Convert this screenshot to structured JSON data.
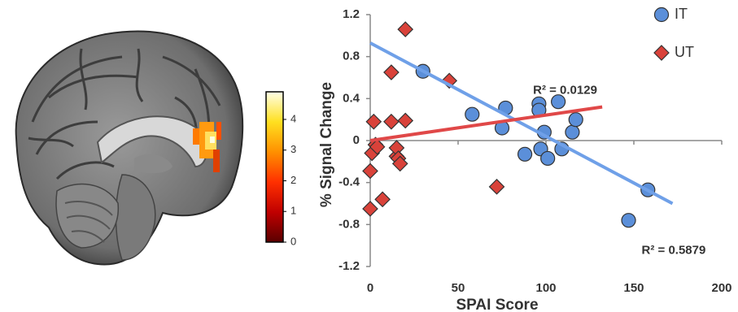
{
  "chart_data": [
    {
      "type": "colorbar",
      "ylim": [
        0,
        4.9
      ],
      "yticks": [
        0,
        1,
        2,
        3,
        4
      ],
      "colors": [
        "#5a0000",
        "#c00000",
        "#ff3000",
        "#ff9000",
        "#ffe020",
        "#ffffe8"
      ]
    },
    {
      "type": "scatter",
      "xlabel": "SPAI Score",
      "ylabel": "% Signal Change",
      "xlim": [
        0,
        200
      ],
      "xticks": [
        0,
        50,
        100,
        150,
        200
      ],
      "ylim": [
        -1.2,
        1.2
      ],
      "yticks": [
        -1.2,
        -0.8,
        -0.4,
        0,
        0.4,
        0.8,
        1.2
      ],
      "series": [
        {
          "name": "IT",
          "color": "#5b8fd9",
          "marker": "circle",
          "line_color": "#6fa0e8",
          "x": [
            30,
            58,
            77,
            75,
            88,
            96,
            96,
            99,
            97,
            101,
            107,
            109,
            115,
            117,
            147,
            158
          ],
          "values": [
            0.66,
            0.25,
            0.31,
            0.12,
            -0.13,
            0.35,
            0.29,
            0.08,
            -0.08,
            -0.17,
            0.37,
            -0.08,
            0.08,
            0.2,
            -0.76,
            -0.47
          ],
          "fit_x": [
            0,
            172
          ],
          "fit_y": [
            0.93,
            -0.6
          ],
          "fit_label": "R² = 0.5879"
        },
        {
          "name": "UT",
          "color": "#d9423a",
          "marker": "diamond",
          "line_color": "#e04848",
          "x": [
            0,
            0,
            1,
            2,
            3,
            4,
            7,
            12,
            12,
            15,
            15,
            16,
            17,
            20,
            20,
            45,
            72
          ],
          "values": [
            -0.65,
            -0.29,
            -0.12,
            0.18,
            -0.04,
            -0.06,
            -0.56,
            0.65,
            0.18,
            -0.15,
            -0.07,
            -0.17,
            -0.22,
            0.19,
            1.06,
            0.57,
            -0.44
          ],
          "fit_x": [
            0,
            132
          ],
          "fit_y": [
            0,
            0.32
          ],
          "fit_label": "R² = 0.0129"
        }
      ]
    }
  ]
}
